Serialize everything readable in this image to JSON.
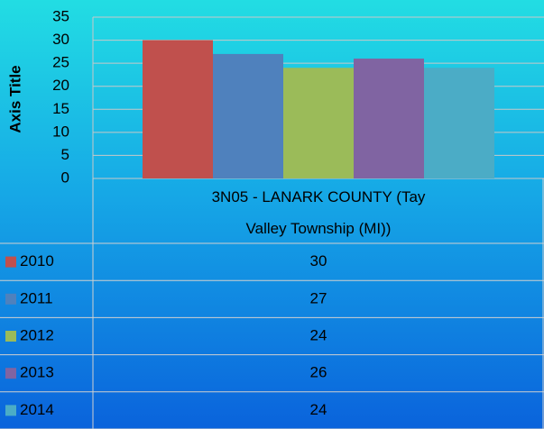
{
  "chart_data": {
    "type": "bar",
    "y_label": "Axis Title",
    "categories": [
      "3N05 - LANARK COUNTY (Tay Valley Township (MI))"
    ],
    "series": [
      {
        "name": "2010",
        "color": "#c0504d",
        "values": [
          30
        ]
      },
      {
        "name": "2011",
        "color": "#4f81bd",
        "values": [
          27
        ]
      },
      {
        "name": "2012",
        "color": "#9bbb59",
        "values": [
          24
        ]
      },
      {
        "name": "2013",
        "color": "#8064a2",
        "values": [
          26
        ]
      },
      {
        "name": "2014",
        "color": "#4bacc6",
        "values": [
          24
        ]
      }
    ],
    "ylim": [
      0,
      35
    ],
    "yticks": [
      0,
      5,
      10,
      15,
      20,
      25,
      30,
      35
    ],
    "grid": true
  }
}
